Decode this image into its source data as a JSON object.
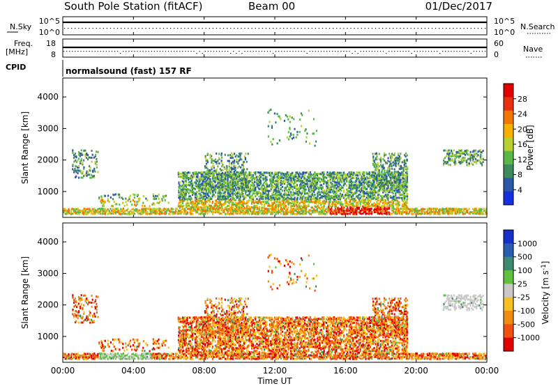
{
  "header": {
    "title": "South Pole Station (fitACF)",
    "beam": "Beam 00",
    "date": "01/Dec/2017"
  },
  "panels": {
    "nsky_label": "N.Sky",
    "nsky_ticks": [
      "10^5",
      "10^0"
    ],
    "nsearch_label": "N.Search",
    "nsearch_ticks": [
      "10^5",
      "10^0"
    ],
    "freq_label_1": "Freq.",
    "freq_label_2": "[MHz]",
    "freq_ticks": [
      "18",
      "8"
    ],
    "nave_label": "Nave",
    "nave_ticks": [
      "60",
      "0"
    ],
    "cpid_label": "CPID",
    "cpid_text": "normalsound (fast) 157 RF"
  },
  "chart_data": [
    {
      "type": "heatmap",
      "name": "power",
      "ylabel": "Slant Range [km]",
      "y_ticks": [
        "1000",
        "2000",
        "3000",
        "4000"
      ],
      "ylim": [
        180,
        4600
      ],
      "x_ticks": [
        "00:00",
        "04:00",
        "08:00",
        "12:00",
        "16:00",
        "20:00",
        "00:00"
      ],
      "xlim_hours": [
        0,
        24
      ],
      "colorbar_label": "Power [dB]",
      "colorbar_ticks": [
        "4",
        "8",
        "12",
        "16",
        "20",
        "24",
        "28"
      ],
      "colorbar_colors": [
        "#1530e0",
        "#2c58a8",
        "#3f8a5c",
        "#5ab84a",
        "#b8d030",
        "#f5b000",
        "#f07800",
        "#e83010",
        "#e00000"
      ]
    },
    {
      "type": "heatmap",
      "name": "velocity",
      "ylabel": "Slant Range [km]",
      "y_ticks": [
        "1000",
        "2000",
        "3000",
        "4000"
      ],
      "ylim": [
        180,
        4600
      ],
      "x_ticks": [
        "00:00",
        "04:00",
        "08:00",
        "12:00",
        "16:00",
        "20:00",
        "00:00"
      ],
      "xlim_hours": [
        0,
        24
      ],
      "xlabel": "Time UT",
      "colorbar_label": "Velocity [m s^-1]",
      "colorbar_ticks": [
        "1000",
        "500",
        "100",
        "25",
        "-25",
        "-100",
        "-500",
        "-1000"
      ],
      "colorbar_colors": [
        "#1530c8",
        "#2a5cb0",
        "#3e8a70",
        "#62c040",
        "#c8c8c8",
        "#f5c020",
        "#f08c10",
        "#f05010",
        "#e00000"
      ]
    }
  ]
}
